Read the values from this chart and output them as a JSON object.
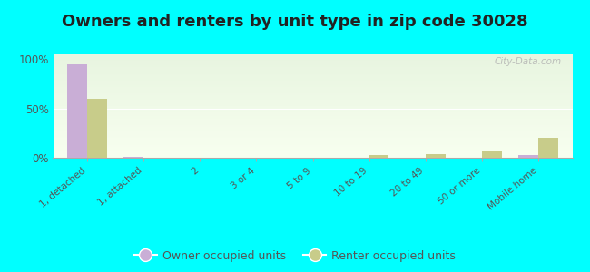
{
  "title": "Owners and renters by unit type in zip code 30028",
  "categories": [
    "1, detached",
    "1, attached",
    "2",
    "3 or 4",
    "5 to 9",
    "10 to 19",
    "20 to 49",
    "50 or more",
    "Mobile home"
  ],
  "owner_values": [
    95,
    1,
    0,
    0,
    0,
    0,
    0,
    0,
    3
  ],
  "renter_values": [
    60,
    0,
    0,
    0,
    0,
    3,
    4,
    7,
    20
  ],
  "owner_color": "#c9aed6",
  "renter_color": "#c8cc8a",
  "background_color": "#00ffff",
  "yticks": [
    0,
    50,
    100
  ],
  "ylim": [
    0,
    105
  ],
  "bar_width": 0.35,
  "title_fontsize": 13,
  "legend_fontsize": 9,
  "watermark": "City-Data.com"
}
